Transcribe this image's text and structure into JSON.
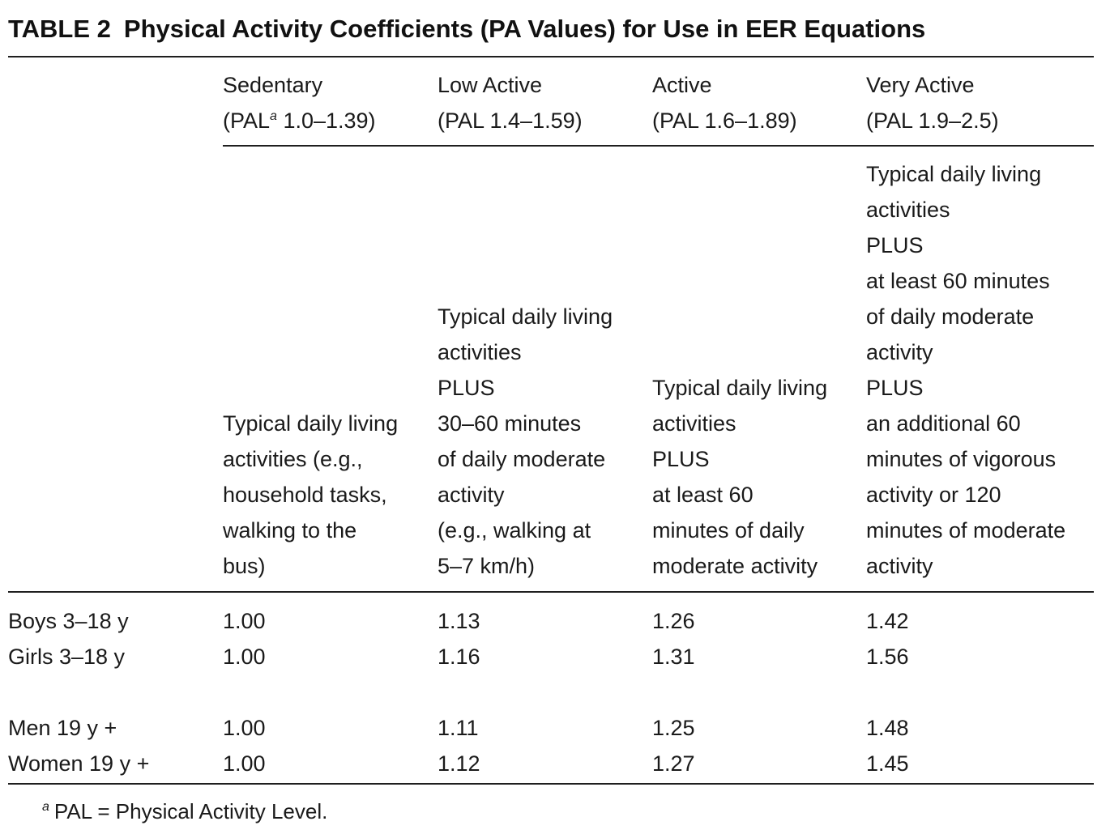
{
  "table": {
    "label": "TABLE 2",
    "title": "Physical Activity Coefficients (PA Values) for Use in EER Equations",
    "columns": [
      {
        "name": "Sedentary",
        "range_prefix": "(PAL",
        "range_sup": "a",
        "range_suffix": " 1.0–1.39)",
        "description": [
          "Typical daily living",
          "activities (e.g.,",
          "household tasks,",
          "walking to the",
          "bus)"
        ]
      },
      {
        "name": "Low Active",
        "range_prefix": "(PAL 1.4–1.59)",
        "range_sup": "",
        "range_suffix": "",
        "description": [
          "Typical daily living",
          "activities",
          "PLUS",
          "30–60 minutes",
          "of daily moderate",
          "activity",
          "(e.g., walking at",
          "5–7 km/h)"
        ]
      },
      {
        "name": "Active",
        "range_prefix": "(PAL 1.6–1.89)",
        "range_sup": "",
        "range_suffix": "",
        "description": [
          "Typical daily living",
          "activities",
          "PLUS",
          "at least 60",
          "minutes of daily",
          "moderate activity"
        ]
      },
      {
        "name": "Very Active",
        "range_prefix": "(PAL 1.9–2.5)",
        "range_sup": "",
        "range_suffix": "",
        "description": [
          "Typical daily living",
          "activities",
          "PLUS",
          "at least 60 minutes",
          "of daily moderate",
          "activity",
          "PLUS",
          "an additional 60",
          "minutes of vigorous",
          "activity or 120",
          "minutes of moderate",
          "activity"
        ]
      }
    ],
    "rows": [
      {
        "group": "Boys 3–18 y",
        "values": [
          "1.00",
          "1.13",
          "1.26",
          "1.42"
        ]
      },
      {
        "group": "Girls 3–18 y",
        "values": [
          "1.00",
          "1.16",
          "1.31",
          "1.56"
        ]
      },
      {
        "group": "Men 19 y +",
        "values": [
          "1.00",
          "1.11",
          "1.25",
          "1.48"
        ]
      },
      {
        "group": "Women 19 y +",
        "values": [
          "1.00",
          "1.12",
          "1.27",
          "1.45"
        ]
      }
    ],
    "footnote": {
      "mark": "a",
      "text": "PAL = Physical Activity Level."
    }
  }
}
